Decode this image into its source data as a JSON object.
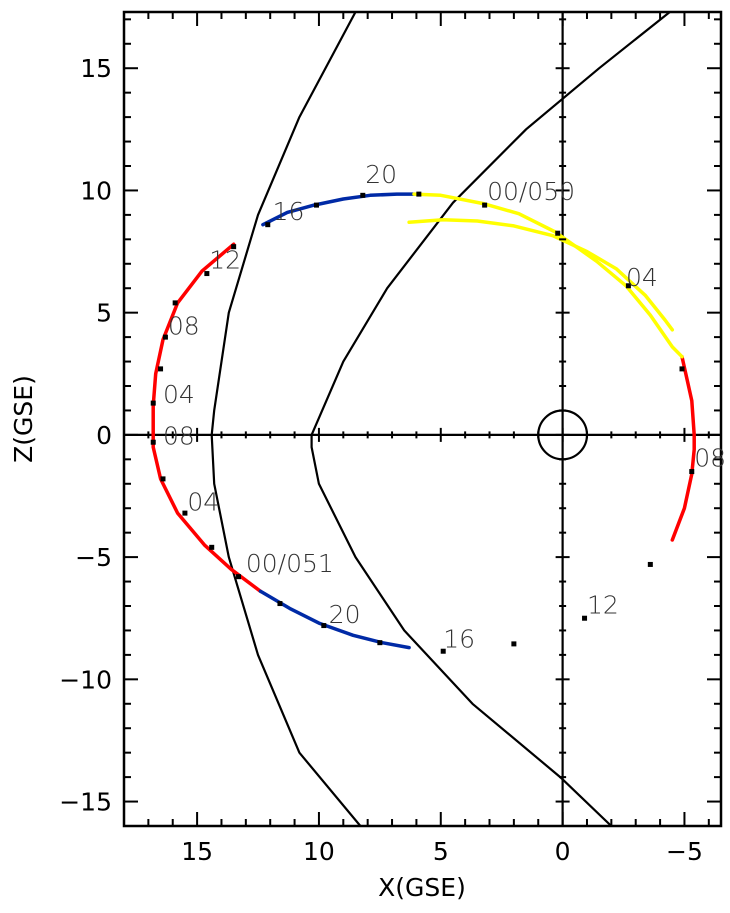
{
  "chart_data": {
    "type": "line",
    "title": "",
    "xlabel": "X(GSE)",
    "ylabel": "Z(GSE)",
    "xlim": [
      18,
      -6.5
    ],
    "ylim": [
      -16,
      17.3
    ],
    "x_reversed": true,
    "x_ticks": [
      15,
      10,
      5,
      0,
      -5
    ],
    "x_tick_labels": [
      "15",
      "10",
      "5",
      "0",
      "−5"
    ],
    "y_ticks": [
      15,
      10,
      5,
      0,
      -5,
      -10,
      -15
    ],
    "y_tick_labels": [
      "15",
      "10",
      "5",
      "0",
      "−5",
      "−10",
      "−15"
    ],
    "grid": false,
    "reference_lines": [
      {
        "name": "x-zero-line",
        "axis": "x",
        "value": 0
      },
      {
        "name": "z-zero-line",
        "axis": "y",
        "value": 0
      }
    ],
    "earth": {
      "x": 0,
      "y": 0,
      "radius": 1
    },
    "boundaries": [
      {
        "name": "bow-shock",
        "points": [
          [
            8.5,
            17.3
          ],
          [
            10.8,
            13
          ],
          [
            12.5,
            9
          ],
          [
            13.7,
            5
          ],
          [
            14.3,
            1
          ],
          [
            14.4,
            0
          ],
          [
            14.3,
            -2
          ],
          [
            13.7,
            -5
          ],
          [
            12.5,
            -9
          ],
          [
            10.8,
            -13
          ],
          [
            8.3,
            -16
          ]
        ]
      },
      {
        "name": "magnetopause",
        "points": [
          [
            -4.4,
            17.3
          ],
          [
            -1.5,
            15
          ],
          [
            1.5,
            12.5
          ],
          [
            4.5,
            9.5
          ],
          [
            7.2,
            6
          ],
          [
            9,
            3
          ],
          [
            10.3,
            0
          ],
          [
            10.3,
            -0.5
          ],
          [
            10,
            -2
          ],
          [
            8.5,
            -5
          ],
          [
            6.5,
            -8
          ],
          [
            3.7,
            -11
          ],
          [
            0.1,
            -14
          ],
          [
            -2,
            -16
          ]
        ]
      }
    ],
    "series": [
      {
        "color": "#ff0000",
        "points": [
          [
            13.5,
            7.8
          ],
          [
            14.8,
            6.7
          ],
          [
            15.8,
            5.4
          ],
          [
            16.4,
            3.9
          ],
          [
            16.7,
            2.5
          ],
          [
            16.8,
            1.2
          ],
          [
            16.8,
            -0.5
          ],
          [
            16.5,
            -1.8
          ],
          [
            15.8,
            -3.2
          ],
          [
            14.7,
            -4.5
          ],
          [
            13.6,
            -5.5
          ],
          [
            12.4,
            -6.4
          ]
        ]
      },
      {
        "color": "#ff0000",
        "points": [
          [
            -4.9,
            3.2
          ],
          [
            -5.3,
            1.4
          ],
          [
            -5.4,
            0
          ],
          [
            -5.4,
            -0.6
          ],
          [
            -5.3,
            -1.6
          ],
          [
            -5,
            -3
          ],
          [
            -4.5,
            -4.3
          ]
        ]
      },
      {
        "color": "#002aa6",
        "points": [
          [
            12.4,
            -6.4
          ],
          [
            11.2,
            -7.1
          ],
          [
            10,
            -7.7
          ],
          [
            8.6,
            -8.2
          ],
          [
            7.4,
            -8.5
          ],
          [
            6.3,
            -8.7
          ]
        ]
      },
      {
        "color": "#002aa6",
        "points": [
          [
            12.3,
            8.6
          ],
          [
            11.3,
            9.1
          ],
          [
            10.2,
            9.4
          ],
          [
            9,
            9.65
          ],
          [
            7.9,
            9.8
          ],
          [
            6.8,
            9.85
          ],
          [
            6.1,
            9.85
          ]
        ]
      },
      {
        "color": "#ffff00",
        "points": [
          [
            6.1,
            9.85
          ],
          [
            5,
            9.8
          ],
          [
            3.2,
            9.45
          ],
          [
            1.8,
            9.05
          ],
          [
            0.3,
            8.3
          ],
          [
            -1.4,
            7.1
          ],
          [
            -2.6,
            6.1
          ],
          [
            -3.6,
            4.9
          ],
          [
            -4.5,
            3.6
          ],
          [
            -4.9,
            3.2
          ]
        ]
      },
      {
        "color": "#ffff00",
        "points": [
          [
            6.3,
            8.7
          ],
          [
            4.9,
            8.8
          ],
          [
            3.5,
            8.75
          ],
          [
            2,
            8.55
          ],
          [
            0.4,
            8.15
          ],
          [
            -1,
            7.5
          ],
          [
            -2.2,
            6.8
          ],
          [
            -3.4,
            5.7
          ],
          [
            -4.2,
            4.7
          ],
          [
            -4.5,
            4.3
          ]
        ]
      }
    ],
    "orbit_markers": [
      [
        15.9,
        5.4
      ],
      [
        16.5,
        2.7
      ],
      [
        16.8,
        1.3
      ],
      [
        16.8,
        -0.3
      ],
      [
        16.4,
        -1.8
      ],
      [
        15.5,
        -3.2
      ],
      [
        14.4,
        -4.6
      ],
      [
        13.3,
        -5.8
      ],
      [
        11.6,
        -6.9
      ],
      [
        9.8,
        -7.8
      ],
      [
        7.5,
        -8.5
      ],
      [
        4.9,
        -8.85
      ],
      [
        2,
        -8.55
      ],
      [
        -0.9,
        -7.5
      ],
      [
        -3.6,
        -5.3
      ],
      [
        -5.3,
        -1.5
      ],
      [
        -4.9,
        2.7
      ],
      [
        -2.7,
        6.1
      ],
      [
        0.2,
        8.25
      ],
      [
        3.2,
        9.4
      ],
      [
        5.9,
        9.85
      ],
      [
        8.2,
        9.8
      ],
      [
        10.1,
        9.4
      ],
      [
        12.1,
        8.6
      ],
      [
        13.5,
        7.7
      ],
      [
        14.6,
        6.6
      ],
      [
        16.3,
        4
      ]
    ],
    "annotations": [
      {
        "text": "20",
        "x": 8.1,
        "y": 10.3
      },
      {
        "text": "16",
        "x": 11.9,
        "y": 8.8
      },
      {
        "text": "12",
        "x": 14.5,
        "y": 6.8
      },
      {
        "text": "08",
        "x": 16.2,
        "y": 4.1
      },
      {
        "text": "04",
        "x": 16.4,
        "y": 1.3
      },
      {
        "text": "08",
        "x": 16.4,
        "y": -0.4
      },
      {
        "text": "04",
        "x": 15.4,
        "y": -3.1
      },
      {
        "text": "00/051",
        "x": 13,
        "y": -5.6
      },
      {
        "text": "20",
        "x": 9.6,
        "y": -7.7
      },
      {
        "text": "16",
        "x": 4.9,
        "y": -8.7
      },
      {
        "text": "12",
        "x": -1,
        "y": -7.3
      },
      {
        "text": "08",
        "x": -5.4,
        "y": -1.3
      },
      {
        "text": "04",
        "x": -2.6,
        "y": 6.1
      },
      {
        "text": "00/050",
        "x": 3.1,
        "y": 9.6
      }
    ]
  }
}
